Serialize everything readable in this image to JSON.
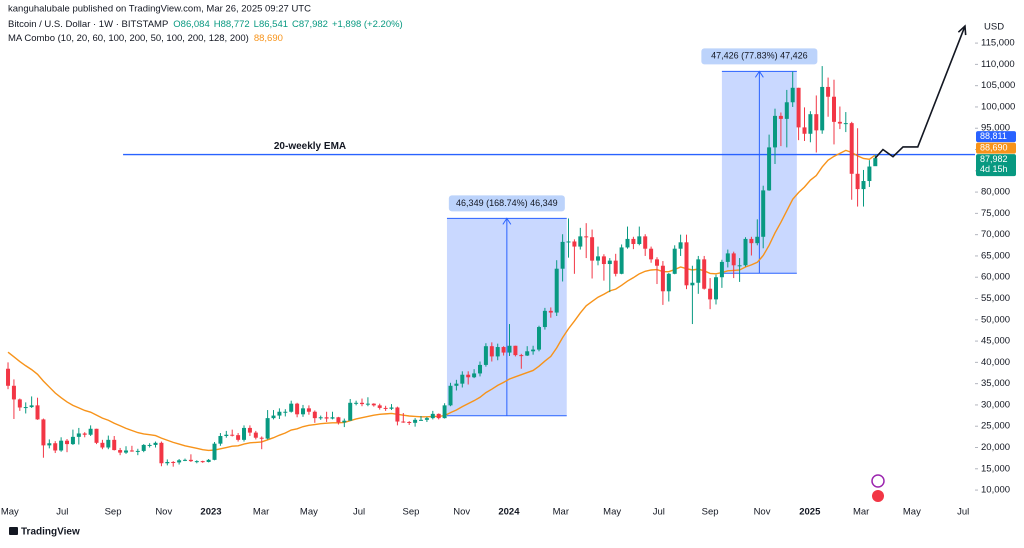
{
  "chart_data": {
    "type": "candlestick",
    "subtitle": "kanguhalubale published on TradingView.com, Mar 26, 2025 09:27 UTC",
    "title": "Bitcoin / U.S. Dollar · 1W · BITSTAMP",
    "legend_values": {
      "open": "O86,084",
      "high": "H88,772",
      "low": "L86,541",
      "close": "C87,982",
      "change": "+1,898 (+2.20%)"
    },
    "y_axis_label": "USD",
    "watermark": "TradingView",
    "up_color": "#089981",
    "down_color": "#f23645",
    "grid": false,
    "ylim": [
      2500,
      121600
    ],
    "yticks": [
      {
        "value": 10000,
        "label": "10,000"
      },
      {
        "value": 15000,
        "label": "15,000"
      },
      {
        "value": 20000,
        "label": "20,000"
      },
      {
        "value": 25000,
        "label": "25,000"
      },
      {
        "value": 30000,
        "label": "30,000"
      },
      {
        "value": 35000,
        "label": "35,000"
      },
      {
        "value": 40000,
        "label": "40,000"
      },
      {
        "value": 45000,
        "label": "45,000"
      },
      {
        "value": 50000,
        "label": "50,000"
      },
      {
        "value": 55000,
        "label": "55,000"
      },
      {
        "value": 60000,
        "label": "60,000"
      },
      {
        "value": 65000,
        "label": "65,000"
      },
      {
        "value": 70000,
        "label": "70,000"
      },
      {
        "value": 75000,
        "label": "75,000"
      },
      {
        "value": 80000,
        "label": "80,000"
      },
      {
        "value": 85000,
        "label": "85,000"
      },
      {
        "value": 90000,
        "label": "90,000"
      },
      {
        "value": 95000,
        "label": "95,000"
      },
      {
        "value": 100000,
        "label": "100,000"
      },
      {
        "value": 105000,
        "label": "105,000"
      },
      {
        "value": 110000,
        "label": "110,000"
      },
      {
        "value": 115000,
        "label": "115,000"
      }
    ],
    "xlim": [
      -1.36,
      163.9
    ],
    "xticks": [
      {
        "value": 0.3,
        "label": "May"
      },
      {
        "value": 9.2,
        "label": "Jul"
      },
      {
        "value": 17.8,
        "label": "Sep"
      },
      {
        "value": 26.4,
        "label": "Nov"
      },
      {
        "value": 34.4,
        "label": "2023"
      },
      {
        "value": 42.9,
        "label": "Mar"
      },
      {
        "value": 51,
        "label": "May"
      },
      {
        "value": 59.5,
        "label": "Jul"
      },
      {
        "value": 68.3,
        "label": "Sep"
      },
      {
        "value": 76.9,
        "label": "Nov"
      },
      {
        "value": 84.9,
        "label": "2024"
      },
      {
        "value": 93.7,
        "label": "Mar"
      },
      {
        "value": 102.4,
        "label": "May"
      },
      {
        "value": 110.3,
        "label": "Jul"
      },
      {
        "value": 119,
        "label": "Sep"
      },
      {
        "value": 127.8,
        "label": "Nov"
      },
      {
        "value": 135.9,
        "label": "2025"
      },
      {
        "value": 144.6,
        "label": "Mar"
      },
      {
        "value": 153.2,
        "label": "May"
      },
      {
        "value": 161.9,
        "label": "Jul"
      }
    ],
    "candles": [
      [
        38500,
        40000,
        33700,
        34500
      ],
      [
        34500,
        36000,
        26700,
        31300
      ],
      [
        31300,
        31500,
        28600,
        29400
      ],
      [
        29400,
        30600,
        28000,
        29500
      ],
      [
        29500,
        32000,
        29300,
        29900
      ],
      [
        29900,
        31700,
        26500,
        26600
      ],
      [
        26600,
        26800,
        17600,
        20500
      ],
      [
        20500,
        21900,
        19800,
        21000
      ],
      [
        21000,
        21500,
        18700,
        19300
      ],
      [
        19300,
        22400,
        19000,
        21600
      ],
      [
        21600,
        22000,
        18900,
        20800
      ],
      [
        20800,
        24200,
        20600,
        22500
      ],
      [
        22500,
        24600,
        20700,
        23300
      ],
      [
        23300,
        23600,
        22400,
        23000
      ],
      [
        23000,
        25200,
        22700,
        24400
      ],
      [
        24400,
        24400,
        20800,
        21100
      ],
      [
        21100,
        21800,
        19600,
        20000
      ],
      [
        20000,
        22800,
        19600,
        21800
      ],
      [
        21800,
        22700,
        19300,
        19400
      ],
      [
        19400,
        19900,
        18200,
        18800
      ],
      [
        18800,
        20300,
        18500,
        19300
      ],
      [
        19300,
        20400,
        19000,
        19100
      ],
      [
        19100,
        19700,
        18200,
        19200
      ],
      [
        19200,
        20800,
        18900,
        20600
      ],
      [
        20600,
        21000,
        20000,
        20600
      ],
      [
        20600,
        21400,
        20000,
        21100
      ],
      [
        21100,
        21400,
        15600,
        16300
      ],
      [
        16300,
        17200,
        15800,
        16600
      ],
      [
        16600,
        16800,
        15500,
        16500
      ],
      [
        16500,
        17300,
        16000,
        17000
      ],
      [
        17000,
        17400,
        16800,
        17100
      ],
      [
        17100,
        18400,
        16600,
        16800
      ],
      [
        16800,
        17000,
        16300,
        16800
      ],
      [
        16800,
        16900,
        16400,
        16600
      ],
      [
        16600,
        17300,
        16500,
        17100
      ],
      [
        17100,
        21300,
        17000,
        20900
      ],
      [
        20900,
        23400,
        20400,
        22700
      ],
      [
        22700,
        23900,
        22300,
        23000
      ],
      [
        23000,
        24200,
        22600,
        22900
      ],
      [
        22900,
        23400,
        21400,
        21800
      ],
      [
        21800,
        25200,
        21400,
        24600
      ],
      [
        24600,
        25200,
        22700,
        23500
      ],
      [
        23500,
        23900,
        21900,
        22300
      ],
      [
        22300,
        22600,
        19600,
        22100
      ],
      [
        22100,
        28800,
        21900,
        26900
      ],
      [
        26900,
        28800,
        26600,
        27500
      ],
      [
        27500,
        29200,
        26700,
        28400
      ],
      [
        28400,
        29000,
        27300,
        28400
      ],
      [
        28400,
        31000,
        28200,
        30300
      ],
      [
        30300,
        30500,
        27100,
        27800
      ],
      [
        27800,
        30000,
        27200,
        29200
      ],
      [
        29200,
        29900,
        27700,
        28400
      ],
      [
        28400,
        28700,
        25800,
        26900
      ],
      [
        26900,
        27500,
        26500,
        27100
      ],
      [
        27100,
        28400,
        26000,
        26800
      ],
      [
        26800,
        28400,
        26600,
        27100
      ],
      [
        27100,
        27200,
        25400,
        25900
      ],
      [
        25900,
        26800,
        24800,
        26300
      ],
      [
        26300,
        31400,
        26300,
        30500
      ],
      [
        30500,
        31000,
        29900,
        30500
      ],
      [
        30500,
        31500,
        29700,
        30200
      ],
      [
        30200,
        31800,
        29700,
        30300
      ],
      [
        30300,
        30400,
        29600,
        29900
      ],
      [
        29900,
        30300,
        28900,
        29300
      ],
      [
        29300,
        29800,
        28600,
        29100
      ],
      [
        29100,
        30200,
        28800,
        29400
      ],
      [
        29400,
        29600,
        25200,
        26100
      ],
      [
        26100,
        28100,
        25800,
        26000
      ],
      [
        26000,
        26200,
        25300,
        25800
      ],
      [
        25800,
        26900,
        24900,
        26500
      ],
      [
        26500,
        27400,
        26300,
        26500
      ],
      [
        26500,
        27200,
        26000,
        26900
      ],
      [
        26900,
        28600,
        26600,
        27900
      ],
      [
        27900,
        28000,
        26600,
        26900
      ],
      [
        26900,
        30400,
        26800,
        29900
      ],
      [
        29900,
        35200,
        29700,
        34500
      ],
      [
        34500,
        35900,
        33400,
        35000
      ],
      [
        35000,
        37900,
        34100,
        37100
      ],
      [
        37100,
        37900,
        34800,
        36500
      ],
      [
        36500,
        38400,
        36300,
        37400
      ],
      [
        37400,
        40200,
        36700,
        39400
      ],
      [
        39400,
        44500,
        39000,
        43800
      ],
      [
        43800,
        44700,
        40200,
        41400
      ],
      [
        41400,
        44400,
        40500,
        43600
      ],
      [
        43600,
        43800,
        41600,
        42300
      ],
      [
        42300,
        49000,
        41500,
        43900
      ],
      [
        43900,
        43900,
        41400,
        41700
      ],
      [
        41700,
        42000,
        38500,
        41600
      ],
      [
        41600,
        43800,
        41500,
        42600
      ],
      [
        42600,
        43900,
        41800,
        43000
      ],
      [
        43000,
        48600,
        42600,
        48300
      ],
      [
        48300,
        52800,
        47700,
        52100
      ],
      [
        52100,
        52900,
        50500,
        51700
      ],
      [
        51700,
        64000,
        50900,
        62000
      ],
      [
        62000,
        70100,
        59000,
        68300
      ],
      [
        68300,
        73800,
        64600,
        68400
      ],
      [
        68400,
        68900,
        60800,
        67200
      ],
      [
        67200,
        71600,
        66500,
        69600
      ],
      [
        69600,
        72700,
        64500,
        69400
      ],
      [
        69400,
        71200,
        59700,
        63900
      ],
      [
        63900,
        67200,
        62800,
        64900
      ],
      [
        64900,
        65400,
        59200,
        63100
      ],
      [
        63100,
        64500,
        56500,
        63900
      ],
      [
        63900,
        65500,
        60200,
        60800
      ],
      [
        60800,
        67700,
        60700,
        67000
      ],
      [
        67000,
        71900,
        66700,
        69000
      ],
      [
        69000,
        69500,
        66600,
        67800
      ],
      [
        67800,
        71900,
        67500,
        69600
      ],
      [
        69600,
        70100,
        65000,
        66700
      ],
      [
        66700,
        67200,
        63400,
        64200
      ],
      [
        64200,
        64700,
        58400,
        62700
      ],
      [
        62700,
        63800,
        53500,
        56700
      ],
      [
        56700,
        61000,
        54300,
        60800
      ],
      [
        60800,
        67500,
        60700,
        66700
      ],
      [
        66700,
        70000,
        65000,
        68200
      ],
      [
        68200,
        70000,
        57200,
        58100
      ],
      [
        58100,
        62700,
        49000,
        58700
      ],
      [
        58700,
        65000,
        56100,
        64200
      ],
      [
        64200,
        65000,
        57100,
        57300
      ],
      [
        57300,
        59800,
        52500,
        54800
      ],
      [
        54800,
        60600,
        53600,
        60000
      ],
      [
        60000,
        64100,
        57500,
        63600
      ],
      [
        63600,
        66500,
        62300,
        65600
      ],
      [
        65600,
        66000,
        59800,
        62800
      ],
      [
        62800,
        64500,
        58900,
        62800
      ],
      [
        62800,
        69400,
        62500,
        69000
      ],
      [
        69000,
        69500,
        65100,
        68000
      ],
      [
        68000,
        73600,
        67500,
        69500
      ],
      [
        69500,
        81500,
        66800,
        80400
      ],
      [
        80400,
        93500,
        80300,
        90500
      ],
      [
        90500,
        99600,
        86600,
        97900
      ],
      [
        97900,
        98700,
        90800,
        97200
      ],
      [
        97200,
        104000,
        90500,
        101100
      ],
      [
        101100,
        108300,
        100000,
        104500
      ],
      [
        104500,
        104500,
        92200,
        95200
      ],
      [
        95200,
        99900,
        92000,
        93700
      ],
      [
        93700,
        99000,
        91700,
        98300
      ],
      [
        98300,
        102700,
        89300,
        94500
      ],
      [
        94500,
        109600,
        93700,
        104700
      ],
      [
        104700,
        106900,
        97700,
        102400
      ],
      [
        102400,
        106400,
        91200,
        96500
      ],
      [
        96500,
        100100,
        94800,
        96100
      ],
      [
        96100,
        98800,
        94100,
        96200
      ],
      [
        96200,
        96500,
        78200,
        84300
      ],
      [
        84300,
        95000,
        76600,
        80700
      ],
      [
        80700,
        85200,
        76600,
        82600
      ],
      [
        82600,
        87500,
        81200,
        86000
      ],
      [
        86084,
        88772,
        86541,
        87982
      ]
    ],
    "ema": {
      "name": "MA Combo (10, 20, 60, 100, 200, 50, 100, 200, 128, 200)",
      "color": "#f7931a",
      "last_label": "88,690",
      "values": [
        42400,
        41300,
        40200,
        39200,
        38300,
        37200,
        35600,
        34200,
        32800,
        31700,
        30700,
        29900,
        29300,
        28700,
        28300,
        27600,
        26900,
        26400,
        25700,
        25100,
        24500,
        24000,
        23500,
        23200,
        23000,
        22800,
        22200,
        21700,
        21200,
        20800,
        20400,
        20100,
        19800,
        19500,
        19300,
        19400,
        19700,
        20000,
        20300,
        20400,
        20800,
        21100,
        21200,
        21300,
        21800,
        22300,
        22900,
        23400,
        24100,
        24400,
        24900,
        25200,
        25400,
        25600,
        25700,
        25800,
        25800,
        25900,
        26300,
        26700,
        27000,
        27300,
        27600,
        27800,
        27900,
        28000,
        27800,
        27600,
        27400,
        27300,
        27200,
        27200,
        27300,
        27300,
        27500,
        28200,
        28800,
        29600,
        30300,
        31000,
        31800,
        32900,
        33700,
        34600,
        35300,
        36100,
        36600,
        37100,
        37600,
        38100,
        39100,
        40300,
        41400,
        43400,
        45800,
        47900,
        49700,
        51600,
        53300,
        54300,
        55300,
        56000,
        56800,
        57200,
        58100,
        59100,
        59900,
        60800,
        61400,
        61700,
        61800,
        61300,
        61300,
        61800,
        62400,
        62000,
        61700,
        61900,
        61500,
        60900,
        60800,
        61100,
        61500,
        61600,
        61700,
        62400,
        62900,
        63500,
        65100,
        67500,
        70400,
        72900,
        75600,
        78300,
        79900,
        81200,
        82800,
        83900,
        85900,
        87500,
        88400,
        89100,
        89800,
        89300,
        88500,
        87900,
        87700,
        88690
      ]
    },
    "hline": {
      "value": 88811,
      "start": 19.5,
      "label": "20-weekly EMA",
      "color": "#2962ff"
    },
    "ranges": [
      {
        "start": 74.4,
        "end": 94.7,
        "low": 27468,
        "high": 73817,
        "label": "46,349 (168.74%) 46,349"
      },
      {
        "start": 121,
        "end": 133.7,
        "low": 60935,
        "high": 108361,
        "label": "47,426 (77.83%) 47,426"
      }
    ],
    "projection": {
      "x": [
        147,
        148.3,
        150,
        151.7,
        154.2,
        162.2
      ],
      "values": [
        88000,
        90000,
        88300,
        90600,
        90600,
        119000
      ]
    },
    "price_tags": [
      {
        "value": 88811,
        "label": "88,811",
        "color": "#2962ff"
      },
      {
        "value": 88690,
        "label": "88,690",
        "color": "#f7931a"
      },
      {
        "value": 87982,
        "label": "87,982",
        "color": "#089981",
        "note": "4d 15h"
      }
    ]
  }
}
